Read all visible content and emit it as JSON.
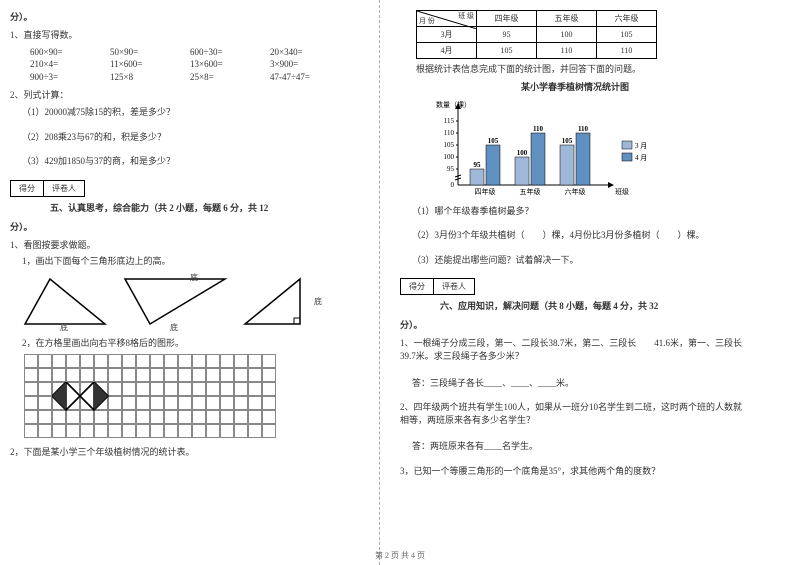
{
  "left": {
    "sect_end": "分）。",
    "q1": "1、直接写得数。",
    "arith": [
      "600×90=",
      "50×90=",
      "600÷30=",
      "20×340=",
      "210×4=",
      "11×600=",
      "13×600=",
      "3×900=",
      "900÷3=",
      "125×8",
      "25×8=",
      "47-47÷47="
    ],
    "q2": "2、列式计算：",
    "q2a": "（1）20000减75除15的积，差是多少？",
    "q2b": "（2）208乘23与67的和，积是多少？",
    "q2c": "（3）429加1850与37的商，和是多少？",
    "scorebox1": "得分",
    "scorebox2": "评卷人",
    "sect5_title": "五、认真思考，综合能力（共 2 小题，每题 6 分，共 12",
    "sect5_end": "分）。",
    "s5q1": "1、看图按要求做题。",
    "s5q1a": "1，画出下面每个三角形底边上的高。",
    "tri_labels": {
      "top": "底",
      "base": "底"
    },
    "s5q1b": "2，在方格里画出向右平移8格后的图形。",
    "s5q2": "2，下面是某小学三个年级植树情况的统计表。"
  },
  "right": {
    "table": {
      "header": [
        "",
        "四年级",
        "五年级",
        "六年级"
      ],
      "rows": [
        [
          "3月",
          "95",
          "100",
          "105"
        ],
        [
          "4月",
          "105",
          "110",
          "110"
        ]
      ]
    },
    "table_diag1": "班 级",
    "table_diag2": "月 份",
    "after_table": "根据统计表信息完成下面的统计图，并回答下面的问题。",
    "chart_title": "某小学春季植树情况统计图",
    "chart": {
      "y_label": "数量（棵）",
      "y_ticks": [
        "0",
        "95",
        "100",
        "105",
        "110",
        "115"
      ],
      "categories": [
        "四年级",
        "五年级",
        "六年级"
      ],
      "x_label": "班级",
      "legend": [
        "3 月",
        "4 月"
      ],
      "legend_colors": [
        "#a0b8d8",
        "#6090c0"
      ],
      "bar_values": [
        [
          95,
          105
        ],
        [
          100,
          110
        ],
        [
          105,
          110
        ]
      ],
      "bar_labels": [
        [
          "95",
          "105"
        ],
        [
          "100",
          "110"
        ],
        [
          "105",
          "110"
        ]
      ],
      "bg": "#ffffff"
    },
    "cq1": "（1）哪个年级春季植树最多？",
    "cq2a": "（2）3月份3个年级共植树（　　）棵，4月份比3月份多植树（　　）棵。",
    "cq3": "（3）还能提出哪些问题？试着解决一下。",
    "scorebox1": "得分",
    "scorebox2": "评卷人",
    "sect6_title": "六、应用知识，解决问题（共 8 小题，每题 4 分，共 32",
    "sect6_end": "分）。",
    "s6q1": "1、一根绳子分成三段，第一、二段长38.7米，第二、三段长　　41.6米，第一、三段长39.7米。求三段绳子各多少米？",
    "s6q1a": "答：三段绳子各长____、____、____米。",
    "s6q2": "2、四年级两个班共有学生100人，如果从一班分10名学生到二班，这时两个班的人数就相等，两班原来各有多少名学生？",
    "s6q2a": "答：两班原来各有____名学生。",
    "s6q3": "3，已知一个等腰三角形的一个底角是35°，求其他两个角的度数？"
  },
  "footer": "第 2 页 共 4 页"
}
